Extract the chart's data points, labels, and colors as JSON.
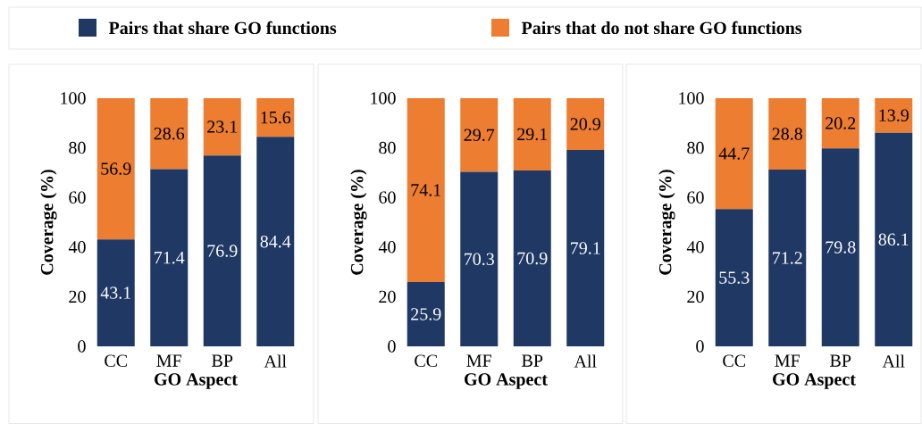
{
  "chart_data": [
    {
      "type": "bar",
      "stacked": true,
      "categories": [
        "CC",
        "MF",
        "BP",
        "All"
      ],
      "ylim": [
        0,
        100
      ],
      "yticks": [
        0,
        20,
        40,
        60,
        80,
        100
      ],
      "ylabel": "Coverage (%)",
      "xlabel": "GO Aspect",
      "data_labels": true,
      "legend": "top",
      "series": [
        {
          "name": "Pairs that share GO functions",
          "color": "#1f3864",
          "values": [
            43.1,
            71.4,
            76.9,
            84.4
          ]
        },
        {
          "name": "Pairs that do not share GO functions",
          "color": "#ed7d31",
          "values": [
            56.9,
            28.6,
            23.1,
            15.6
          ]
        }
      ]
    },
    {
      "type": "bar",
      "stacked": true,
      "categories": [
        "CC",
        "MF",
        "BP",
        "All"
      ],
      "ylim": [
        0,
        100
      ],
      "yticks": [
        0,
        20,
        40,
        60,
        80,
        100
      ],
      "ylabel": "Coverage (%)",
      "xlabel": "GO Aspect",
      "data_labels": true,
      "series": [
        {
          "color": "#1f3864",
          "values": [
            25.9,
            70.3,
            70.9,
            79.1
          ]
        },
        {
          "color": "#ed7d31",
          "values": [
            74.1,
            29.7,
            29.1,
            20.9
          ]
        }
      ]
    },
    {
      "type": "bar",
      "stacked": true,
      "categories": [
        "CC",
        "MF",
        "BP",
        "All"
      ],
      "ylim": [
        0,
        100
      ],
      "yticks": [
        0,
        20,
        40,
        60,
        80,
        100
      ],
      "ylabel": "Coverage (%)",
      "xlabel": "GO Aspect",
      "data_labels": true,
      "series": [
        {
          "color": "#1f3864",
          "values": [
            55.3,
            71.2,
            79.8,
            86.1
          ]
        },
        {
          "color": "#ed7d31",
          "values": [
            44.7,
            28.8,
            20.2,
            13.9
          ]
        }
      ]
    }
  ]
}
